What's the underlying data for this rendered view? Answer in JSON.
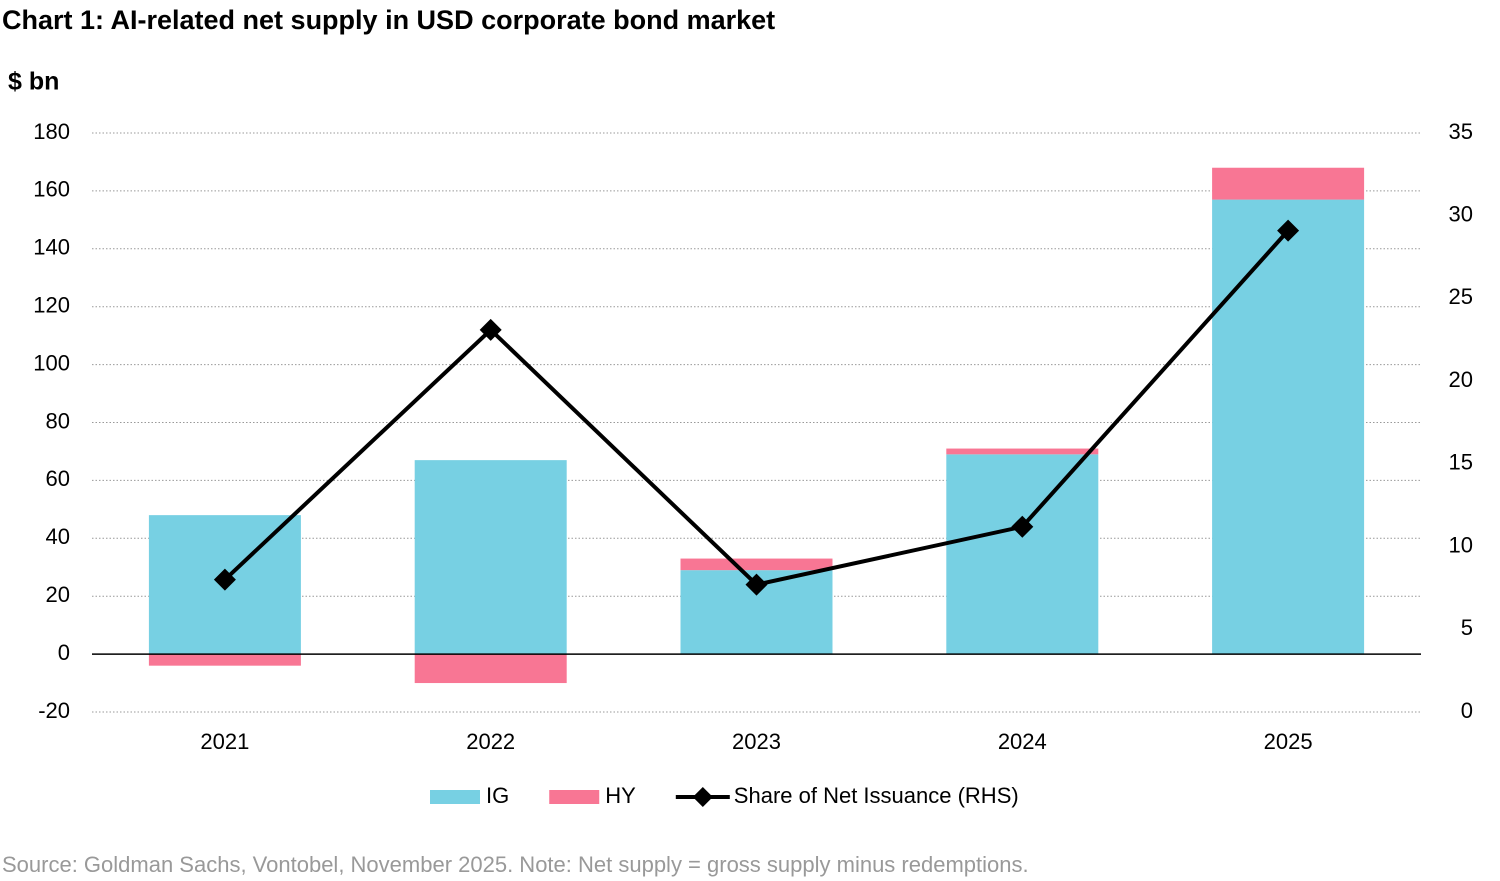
{
  "chart_data": {
    "type": "bar",
    "title": "Chart 1: AI-related net supply in USD corporate bond market",
    "y_label": "$ bn",
    "source": "Source: Goldman Sachs, Vontobel, November 2025. Note: Net supply = gross supply minus redemptions.",
    "categories": [
      "2021",
      "2022",
      "2023",
      "2024",
      "2025"
    ],
    "series": [
      {
        "name": "IG",
        "type": "bar",
        "color": "#77d0e3",
        "values": [
          48,
          67,
          29,
          69,
          157
        ]
      },
      {
        "name": "HY",
        "type": "bar",
        "color": "#f87694",
        "values": [
          -4,
          -10,
          4,
          2,
          11
        ]
      },
      {
        "name": "Share of Net Issuance (RHS)",
        "type": "line",
        "axis": "y2",
        "color": "#000000",
        "values": [
          8.0,
          23.1,
          7.7,
          11.2,
          29.1
        ]
      }
    ],
    "ylim": [
      -20,
      180
    ],
    "yticks": [
      -20,
      0,
      20,
      40,
      60,
      80,
      100,
      120,
      140,
      160,
      180
    ],
    "y2lim": [
      0,
      35
    ],
    "y2ticks": [
      0,
      5,
      10,
      15,
      20,
      25,
      30,
      35
    ],
    "grid": true,
    "legend": "bottom"
  }
}
